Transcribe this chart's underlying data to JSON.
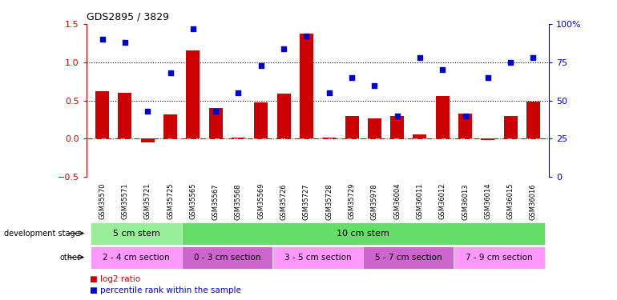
{
  "title": "GDS2895 / 3829",
  "categories": [
    "GSM35570",
    "GSM35571",
    "GSM35721",
    "GSM35725",
    "GSM35565",
    "GSM35567",
    "GSM35568",
    "GSM35569",
    "GSM35726",
    "GSM35727",
    "GSM35728",
    "GSM35729",
    "GSM35978",
    "GSM36004",
    "GSM36011",
    "GSM36012",
    "GSM36013",
    "GSM36014",
    "GSM36015",
    "GSM36016"
  ],
  "log2_ratio": [
    0.62,
    0.6,
    -0.05,
    0.32,
    1.15,
    0.4,
    0.02,
    0.47,
    0.59,
    1.37,
    0.02,
    0.3,
    0.27,
    0.3,
    0.06,
    0.56,
    0.33,
    -0.02,
    0.3,
    0.49
  ],
  "percentile": [
    90,
    88,
    43,
    68,
    97,
    43,
    55,
    73,
    84,
    92,
    55,
    65,
    60,
    40,
    78,
    70,
    40,
    65,
    75,
    78
  ],
  "bar_color": "#cc0000",
  "dot_color": "#0000cc",
  "ylim_left": [
    -0.5,
    1.5
  ],
  "ylim_right": [
    0,
    100
  ],
  "yticks_left": [
    -0.5,
    0.0,
    0.5,
    1.0,
    1.5
  ],
  "yticks_right": [
    0,
    25,
    50,
    75,
    100
  ],
  "yticklabels_right": [
    "0",
    "25",
    "50",
    "75",
    "100%"
  ],
  "dev_stage_groups": [
    {
      "label": "5 cm stem",
      "start": 0,
      "end": 3,
      "color": "#99ee99"
    },
    {
      "label": "10 cm stem",
      "start": 4,
      "end": 19,
      "color": "#66dd66"
    }
  ],
  "other_groups": [
    {
      "label": "2 - 4 cm section",
      "start": 0,
      "end": 3,
      "color": "#ff99ff"
    },
    {
      "label": "0 - 3 cm section",
      "start": 4,
      "end": 7,
      "color": "#cc66cc"
    },
    {
      "label": "3 - 5 cm section",
      "start": 8,
      "end": 11,
      "color": "#ff99ff"
    },
    {
      "label": "5 - 7 cm section",
      "start": 12,
      "end": 15,
      "color": "#cc66cc"
    },
    {
      "label": "7 - 9 cm section",
      "start": 16,
      "end": 19,
      "color": "#ff99ff"
    }
  ]
}
